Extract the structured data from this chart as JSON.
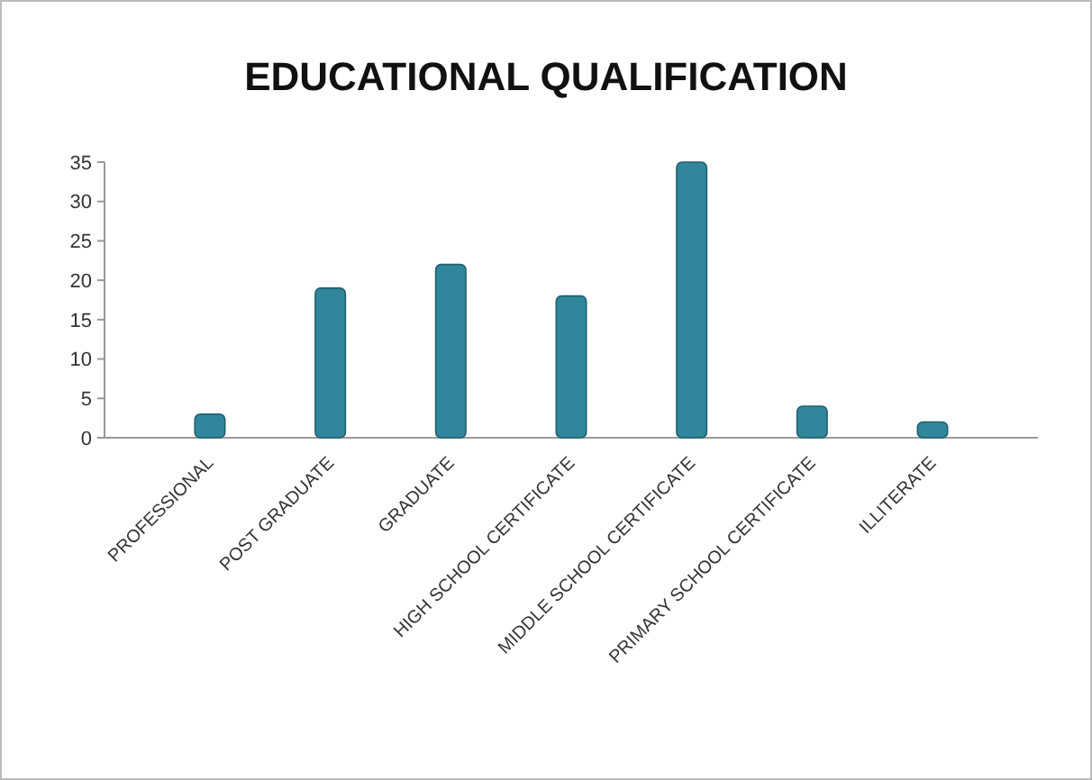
{
  "chart_data": {
    "type": "bar",
    "title": "EDUCATIONAL QUALIFICATION",
    "categories": [
      "PROFESSIONAL",
      "POST GRADUATE",
      "GRADUATE",
      "HIGH SCHOOL CERTIFICATE",
      "MIDDLE SCHOOL CERTIFICATE",
      "PRIMARY SCHOOL CERTIFICATE",
      "ILLITERATE"
    ],
    "values": [
      3,
      19,
      22,
      18,
      35,
      4,
      2
    ],
    "color": "#31869b",
    "ylim": [
      0,
      35
    ],
    "yticks": [
      0,
      5,
      10,
      15,
      20,
      25,
      30,
      35
    ],
    "grid": false
  }
}
